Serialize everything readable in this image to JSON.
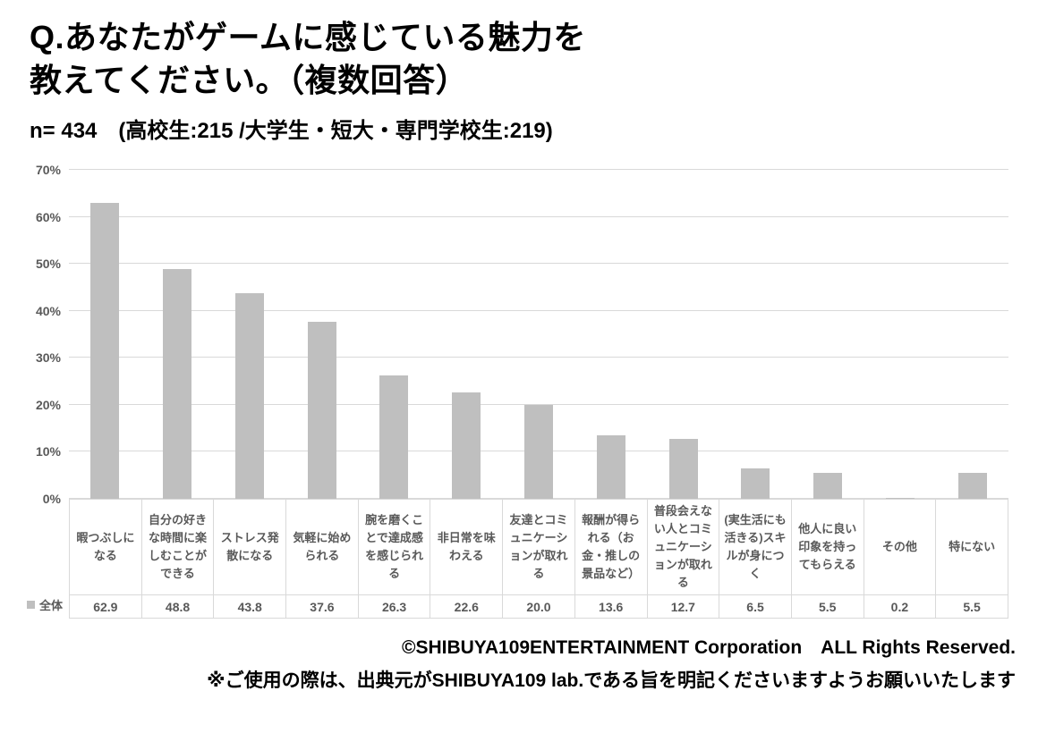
{
  "header": {
    "title_line1": "Q.あなたがゲームに感じている魅力を",
    "title_line2": "教えてください。（複数回答）",
    "subtitle": "n= 434　(高校生:215 /大学生・短大・専門学校生:219)"
  },
  "chart_data": {
    "type": "bar",
    "title": "Q.あなたがゲームに感じている魅力を教えてください。（複数回答）",
    "subtitle": "n= 434　(高校生:215 /大学生・短大・専門学校生:219)",
    "categories": [
      "暇つぶしになる",
      "自分の好きな時間に楽しむことができる",
      "ストレス発散になる",
      "気軽に始められる",
      "腕を磨くことで達成感を感じられる",
      "非日常を味わえる",
      "友達とコミュニケーションが取れる",
      "報酬が得られる（お金・推しの景品など）",
      "普段会えない人とコミュニケーションが取れる",
      "(実生活にも活きる)スキルが身につく",
      "他人に良い印象を持ってもらえる",
      "その他",
      "特にない"
    ],
    "series": [
      {
        "name": "全体",
        "values": [
          62.9,
          48.8,
          43.8,
          37.6,
          26.3,
          22.6,
          20.0,
          13.6,
          12.7,
          6.5,
          5.5,
          0.2,
          5.5
        ],
        "value_labels": [
          "62.9",
          "48.8",
          "43.8",
          "37.6",
          "26.3",
          "22.6",
          "20.0",
          "13.6",
          "12.7",
          "6.5",
          "5.5",
          "0.2",
          "5.5"
        ]
      }
    ],
    "xlabel": "",
    "ylabel": "",
    "ylim": [
      0,
      70
    ],
    "yticks": [
      0,
      10,
      20,
      30,
      40,
      50,
      60,
      70
    ],
    "ytick_labels": [
      "0%",
      "10%",
      "20%",
      "30%",
      "40%",
      "50%",
      "60%",
      "70%"
    ],
    "grid": true,
    "legend_position": "bottom-left",
    "bar_color": "#bfbfbf",
    "gridline_color": "#d9d9d9",
    "axis_text_color": "#595959"
  },
  "footer": {
    "line1": "©SHIBUYA109ENTERTAINMENT Corporation　ALL Rights Reserved.",
    "line2": "※ご使用の際は、出典元がSHIBUYA109 lab.である旨を明記くださいますようお願いいたします"
  }
}
